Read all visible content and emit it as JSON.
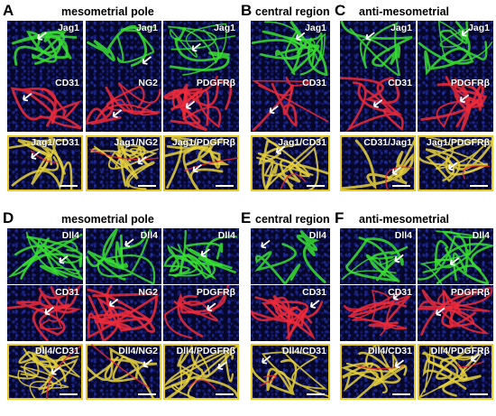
{
  "figure": {
    "A": {
      "letter": "A",
      "title": "mesometrial pole"
    },
    "B": {
      "letter": "B",
      "title": "central region"
    },
    "C": {
      "letter": "C",
      "title": "anti-mesometrial"
    },
    "D": {
      "letter": "D",
      "title": "mesometrial pole"
    },
    "E": {
      "letter": "E",
      "title": "central region"
    },
    "F": {
      "letter": "F",
      "title": "anti-mesometrial"
    }
  },
  "panels": [
    {
      "label": "Jag1",
      "channel": "green"
    },
    {
      "label": "Jag1",
      "channel": "green"
    },
    {
      "label": "Jag1",
      "channel": "green"
    },
    {
      "label": "CD31",
      "channel": "red"
    },
    {
      "label": "NG2",
      "channel": "red"
    },
    {
      "label": "PDGFRβ",
      "channel": "red"
    },
    {
      "label": "Jag1/CD31",
      "channel": "merge"
    },
    {
      "label": "Jag1/NG2",
      "channel": "merge"
    },
    {
      "label": "Jag1/PDGFRβ",
      "channel": "merge"
    },
    {
      "label": "Jag1",
      "channel": "green"
    },
    {
      "label": "CD31",
      "channel": "red"
    },
    {
      "label": "Jag1/CD31",
      "channel": "merge"
    },
    {
      "label": "Jag1",
      "channel": "green"
    },
    {
      "label": "Jag1",
      "channel": "green"
    },
    {
      "label": "CD31",
      "channel": "red"
    },
    {
      "label": "PDGFRβ",
      "channel": "red"
    },
    {
      "label": "CD31/Jag1",
      "channel": "merge"
    },
    {
      "label": "Jag1/PDGFRβ",
      "channel": "merge"
    },
    {
      "label": "Dll4",
      "channel": "green"
    },
    {
      "label": "Dll4",
      "channel": "green"
    },
    {
      "label": "Dll4",
      "channel": "green"
    },
    {
      "label": "CD31",
      "channel": "red"
    },
    {
      "label": "NG2",
      "channel": "red"
    },
    {
      "label": "PDGFRβ",
      "channel": "red"
    },
    {
      "label": "Dll4/CD31",
      "channel": "merge"
    },
    {
      "label": "Dll4/NG2",
      "channel": "merge"
    },
    {
      "label": "Dll4/PDGFRβ",
      "channel": "merge"
    },
    {
      "label": "Dll4",
      "channel": "green"
    },
    {
      "label": "CD31",
      "channel": "red"
    },
    {
      "label": "Dll4/CD31",
      "channel": "merge"
    },
    {
      "label": "Dll4",
      "channel": "green"
    },
    {
      "label": "Dll4",
      "channel": "green"
    },
    {
      "label": "CD31",
      "channel": "red"
    },
    {
      "label": "PDGFRβ",
      "channel": "red"
    },
    {
      "label": "Dll4/CD31",
      "channel": "merge"
    },
    {
      "label": "Dll4/PDGFRβ",
      "channel": "merge"
    }
  ],
  "colors": {
    "green": "#38e030",
    "red": "#f02a3a",
    "merge": "#e8d23a",
    "merge_border": "#e8c820",
    "nuclei": "#2b3ed0",
    "background": "#07072a"
  }
}
